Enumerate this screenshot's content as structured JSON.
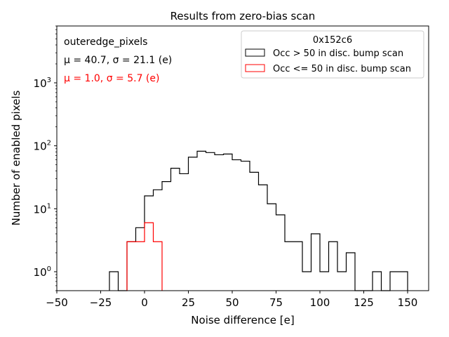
{
  "chart_data": {
    "type": "histogram",
    "title": "Results from zero-bias scan",
    "xlabel": "Noise difference [e]",
    "ylabel": "Number of enabled pixels",
    "xlim": [
      -50,
      162
    ],
    "ylim": [
      0.5,
      8000
    ],
    "yscale": "log",
    "x_ticks": [
      -50,
      -25,
      0,
      25,
      50,
      75,
      100,
      125,
      150
    ],
    "x_tick_labels": [
      "−50",
      "−25",
      "0",
      "25",
      "50",
      "75",
      "100",
      "125",
      "150"
    ],
    "y_ticks": [
      {
        "base": "10",
        "exp": "0",
        "value": 1
      },
      {
        "base": "10",
        "exp": "1",
        "value": 10
      },
      {
        "base": "10",
        "exp": "2",
        "value": 100
      },
      {
        "base": "10",
        "exp": "3",
        "value": 1000
      }
    ],
    "bin_width": 5,
    "annotations": {
      "category": "outeredge_pixels",
      "stats_series1": "μ = 40.7, σ = 21.1 (e)",
      "stats_series2": "μ = 1.0, σ = 5.7 (e)"
    },
    "legend": {
      "title": "0x152c6",
      "position": "top-right"
    },
    "series": [
      {
        "name": "Occ > 50 in disc. bump scan",
        "color": "#000000",
        "bins": [
          [
            -20,
            1
          ],
          [
            -15,
            0
          ],
          [
            -10,
            3
          ],
          [
            -5,
            5
          ],
          [
            0,
            16
          ],
          [
            5,
            20
          ],
          [
            10,
            27
          ],
          [
            15,
            44
          ],
          [
            20,
            36
          ],
          [
            25,
            66
          ],
          [
            30,
            82
          ],
          [
            35,
            78
          ],
          [
            40,
            72
          ],
          [
            45,
            74
          ],
          [
            50,
            60
          ],
          [
            55,
            57
          ],
          [
            60,
            38
          ],
          [
            65,
            24
          ],
          [
            70,
            12
          ],
          [
            75,
            8
          ],
          [
            80,
            3
          ],
          [
            85,
            3
          ],
          [
            90,
            1
          ],
          [
            95,
            4
          ],
          [
            100,
            1
          ],
          [
            105,
            3
          ],
          [
            110,
            1
          ],
          [
            115,
            2
          ],
          [
            120,
            0
          ],
          [
            125,
            0
          ],
          [
            130,
            1
          ],
          [
            135,
            0
          ],
          [
            140,
            1
          ],
          [
            145,
            1
          ]
        ]
      },
      {
        "name": "Occ <= 50 in disc. bump scan",
        "color": "#ff0000",
        "bins": [
          [
            -10,
            3
          ],
          [
            -5,
            3
          ],
          [
            0,
            6
          ],
          [
            5,
            3
          ]
        ]
      }
    ]
  }
}
